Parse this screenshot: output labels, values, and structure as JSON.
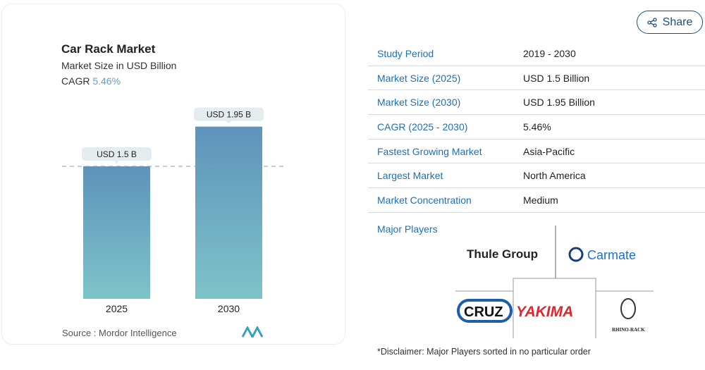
{
  "chart_data": {
    "type": "bar",
    "title": "Car Rack Market",
    "subtitle": "Market Size in USD Billion",
    "cagr_label": "CAGR",
    "cagr_value": "5.46%",
    "categories": [
      "2025",
      "2030"
    ],
    "values": [
      1.5,
      1.95
    ],
    "data_labels": [
      "USD 1.5 B",
      "USD 1.95 B"
    ],
    "ylim": [
      0,
      2.1
    ],
    "source": "Source : Mordor Intelligence"
  },
  "share_label": "Share",
  "table": [
    {
      "k": "Study Period",
      "v": "2019 - 2030"
    },
    {
      "k": "Market Size (2025)",
      "v": "USD 1.5 Billion"
    },
    {
      "k": "Market Size (2030)",
      "v": "USD 1.95 Billion"
    },
    {
      "k": "CAGR (2025 - 2030)",
      "v": "5.46%"
    },
    {
      "k": "Fastest Growing Market",
      "v": "Asia-Pacific"
    },
    {
      "k": "Largest Market",
      "v": "North America"
    },
    {
      "k": "Market Concentration",
      "v": "Medium"
    }
  ],
  "major_players_label": "Major Players",
  "players": [
    "Thule Group",
    "Carmate",
    "CRUZ",
    "YAKIMA",
    "RHINO-RACK"
  ],
  "disclaimer": "*Disclaimer: Major Players sorted in no particular order"
}
